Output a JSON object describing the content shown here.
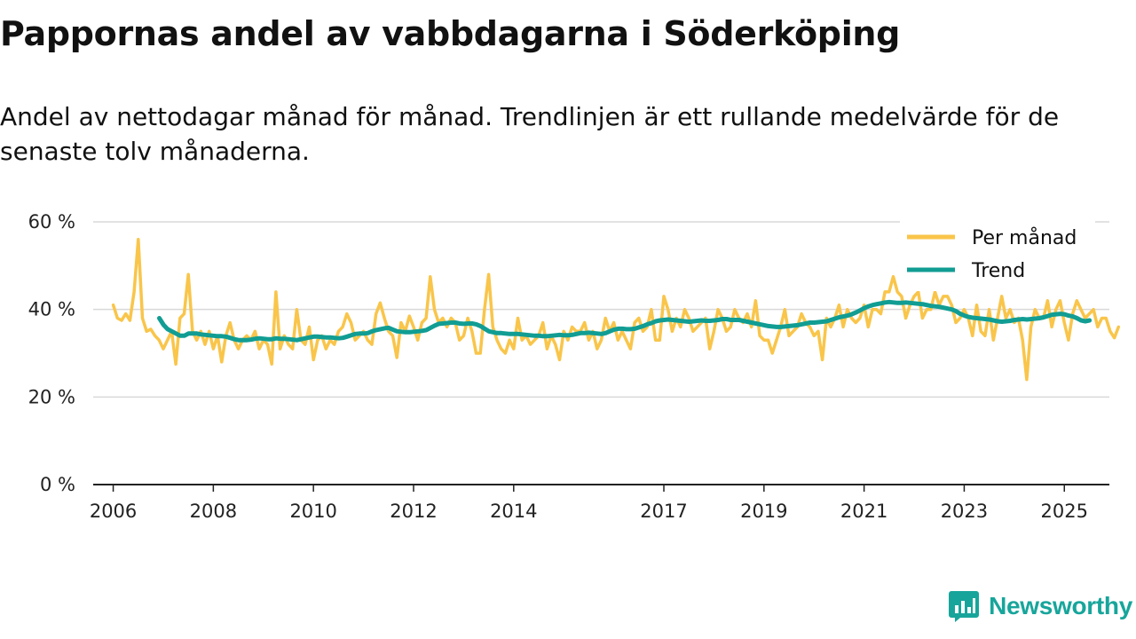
{
  "title": "Pappornas andel av vabbdagarna i Söderköping",
  "subtitle": "Andel av nettodagar månad för månad. Trendlinjen är ett rullande medelvärde för de senaste tolv månaderna.",
  "brand": {
    "name": "Newsworthy",
    "color": "#17a59b",
    "icon": "chart-logo-icon"
  },
  "colors": {
    "monthly": "#f9c54a",
    "trend": "#119d93",
    "grid": "#d9d9d9",
    "axis": "#222222"
  },
  "chart_data": {
    "type": "line",
    "title": "Pappornas andel av vabbdagarna i Söderköping",
    "xlabel": "",
    "ylabel": "",
    "ylim": [
      0,
      60
    ],
    "xlim": [
      2005.6,
      2025.9
    ],
    "yticks": [
      0,
      20,
      40,
      60
    ],
    "ytick_labels": [
      "0 %",
      "20 %",
      "40 %",
      "60 %"
    ],
    "xticks": [
      2006,
      2008,
      2010,
      2012,
      2014,
      2017,
      2019,
      2021,
      2023,
      2025
    ],
    "xtick_labels": [
      "2006",
      "2008",
      "2010",
      "2012",
      "2014",
      "2017",
      "2019",
      "2021",
      "2023",
      "2025"
    ],
    "grid": true,
    "legend_position": "top-right",
    "series": [
      {
        "name": "Per månad",
        "start": 2006.0,
        "step": 0.08333,
        "values": [
          41,
          38,
          37.5,
          39,
          37.5,
          44,
          56,
          38,
          35,
          35.5,
          34,
          33,
          31,
          33,
          35,
          27.5,
          38,
          39,
          48,
          35,
          33,
          35,
          32,
          35,
          31,
          34,
          28,
          34,
          37,
          33,
          31,
          33,
          34,
          33,
          35,
          31,
          33,
          32,
          27.5,
          44,
          31,
          34,
          32,
          31,
          40,
          33,
          32,
          36,
          28.5,
          33,
          34,
          31,
          33,
          32,
          35,
          36,
          39,
          37,
          33,
          34,
          35,
          33,
          32,
          39,
          41.5,
          38,
          35,
          34,
          29,
          37,
          35,
          38.5,
          36,
          33,
          37,
          38,
          47.5,
          40,
          37,
          38,
          36,
          38,
          37,
          33,
          34,
          38,
          35,
          30,
          30,
          40,
          48,
          36,
          33,
          31,
          30,
          33,
          31,
          38,
          33,
          34,
          32,
          33,
          34,
          37,
          31,
          34,
          32,
          28.5,
          35,
          33,
          36,
          35,
          35,
          37,
          33,
          35,
          31,
          33,
          38,
          35,
          37,
          33,
          35,
          33,
          31,
          37,
          38,
          35,
          36,
          40,
          33,
          33,
          43,
          40,
          35,
          38,
          36,
          40,
          38,
          35,
          36,
          37,
          38,
          31,
          35,
          40,
          38,
          35,
          36,
          40,
          38,
          37,
          39,
          36,
          42,
          34,
          33,
          33,
          30,
          33,
          36,
          40,
          34,
          35,
          36,
          39,
          37,
          36,
          34,
          35,
          28.5,
          38,
          36,
          38,
          41,
          36,
          40,
          38,
          37,
          38,
          41,
          36,
          40,
          40,
          39,
          44,
          44,
          47.5,
          44,
          43,
          38,
          41,
          43,
          44,
          38,
          40,
          40,
          44,
          41,
          43,
          43,
          41,
          37,
          38,
          40,
          38,
          34,
          41,
          35,
          34,
          40,
          33,
          38,
          43,
          38,
          40,
          37,
          38,
          33,
          24,
          36,
          40,
          38,
          38,
          42,
          36,
          40,
          42,
          37,
          33,
          39,
          42,
          40,
          38,
          39,
          40,
          36,
          38,
          38,
          35,
          33.5,
          36
        ]
      },
      {
        "name": "Trend",
        "start": 2006.92,
        "step": 0.08333,
        "values": [
          38,
          36.5,
          35.5,
          35,
          34.5,
          34,
          34,
          34.5,
          34.5,
          34.5,
          34.3,
          34.2,
          34.1,
          34,
          33.9,
          33.9,
          33.8,
          33.5,
          33.2,
          33,
          33,
          33,
          33.1,
          33.3,
          33.4,
          33.3,
          33.2,
          33.2,
          33.4,
          33.3,
          33.3,
          33.2,
          33.1,
          33,
          33.2,
          33.4,
          33.6,
          33.8,
          33.8,
          33.7,
          33.6,
          33.6,
          33.5,
          33.4,
          33.5,
          33.8,
          34.1,
          34.4,
          34.5,
          34.5,
          34.6,
          35,
          35.3,
          35.5,
          35.7,
          35.8,
          35.4,
          35,
          34.9,
          34.8,
          34.8,
          34.9,
          35,
          35.1,
          35.3,
          35.8,
          36.3,
          36.7,
          36.8,
          36.9,
          37,
          37,
          36.8,
          36.7,
          36.8,
          36.8,
          36.6,
          36.2,
          35.6,
          35,
          34.8,
          34.6,
          34.6,
          34.5,
          34.4,
          34.4,
          34.4,
          34.3,
          34.2,
          34.1,
          34,
          34,
          33.9,
          33.9,
          34,
          34.1,
          34.2,
          34.1,
          34.1,
          34.2,
          34.4,
          34.6,
          34.6,
          34.7,
          34.6,
          34.5,
          34.4,
          34.6,
          35,
          35.4,
          35.6,
          35.6,
          35.5,
          35.5,
          35.6,
          35.9,
          36.2,
          36.6,
          36.9,
          37.3,
          37.5,
          37.6,
          37.7,
          37.6,
          37.5,
          37.4,
          37.3,
          37.2,
          37.3,
          37.4,
          37.5,
          37.4,
          37.4,
          37.5,
          37.6,
          37.8,
          37.8,
          37.6,
          37.6,
          37.6,
          37.4,
          37.2,
          37,
          36.8,
          36.6,
          36.4,
          36.2,
          36.1,
          36,
          36,
          36.1,
          36.2,
          36.3,
          36.4,
          36.6,
          36.8,
          37,
          37,
          37.1,
          37.2,
          37.3,
          37.6,
          37.9,
          38.2,
          38.4,
          38.6,
          38.9,
          39.3,
          39.8,
          40.3,
          40.7,
          41,
          41.2,
          41.4,
          41.6,
          41.7,
          41.6,
          41.5,
          41.5,
          41.6,
          41.5,
          41.4,
          41.3,
          41.2,
          41,
          40.8,
          40.7,
          40.6,
          40.4,
          40.2,
          40,
          39.6,
          39,
          38.6,
          38.3,
          38.1,
          38,
          37.9,
          37.8,
          37.7,
          37.5,
          37.3,
          37.2,
          37.3,
          37.4,
          37.6,
          37.7,
          37.8,
          37.7,
          37.8,
          37.9,
          38,
          38.2,
          38.5,
          38.8,
          38.9,
          39,
          38.9,
          38.6,
          38.4,
          38,
          37.5,
          37.3,
          37.5
        ]
      }
    ]
  }
}
